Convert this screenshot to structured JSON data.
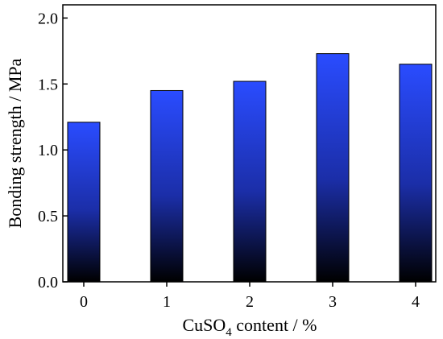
{
  "chart_data": {
    "type": "bar",
    "categories": [
      "0",
      "1",
      "2",
      "3",
      "4"
    ],
    "values": [
      1.21,
      1.45,
      1.52,
      1.73,
      1.65
    ],
    "title": "",
    "ylabel": "Bonding strength / MPa",
    "xlabel": {
      "prefix": "CuSO",
      "subscript": "4",
      "suffix": " content / %"
    },
    "ylim": [
      0,
      2.1
    ],
    "yticks": [
      "0.0",
      "0.5",
      "1.0",
      "1.5",
      "2.0"
    ],
    "grid": false,
    "legend": "none",
    "colors": {
      "bar_top": "#2a4cff",
      "bar_mid": "#1b2ea8",
      "bar_bottom": "#000000",
      "bar_edge": "#000000",
      "axis": "#000000"
    }
  }
}
